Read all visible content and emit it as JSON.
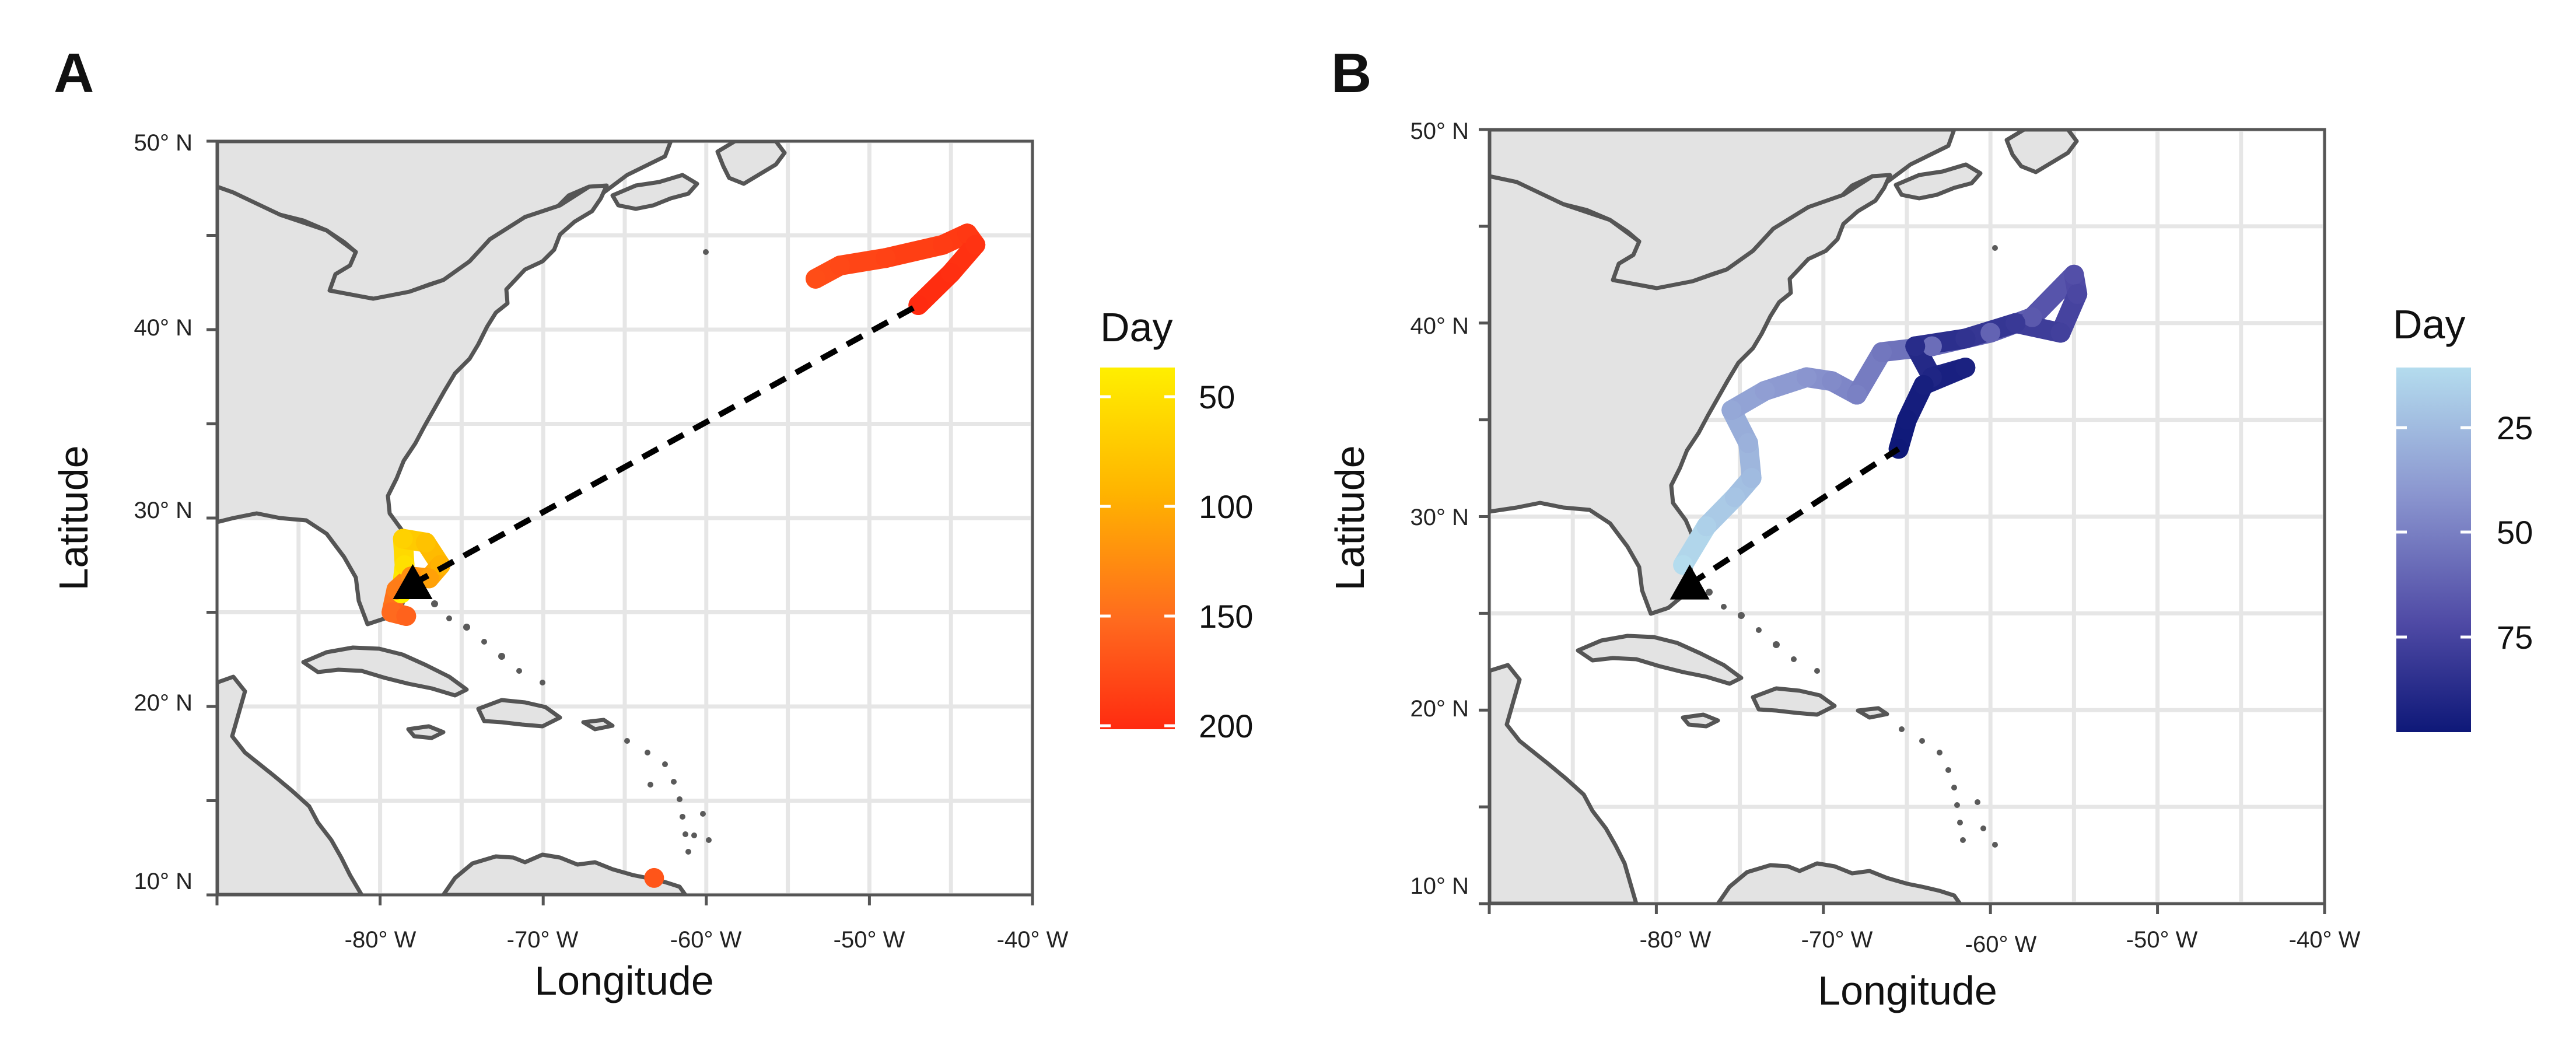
{
  "figure": {
    "panels": [
      {
        "letter": "A",
        "x_ticks": [
          "-80° W",
          "-70° W",
          "-60° W",
          "-50° W",
          "-40° W"
        ],
        "y_ticks": [
          "10° N",
          "20° N",
          "30° N",
          "40° N",
          "50° N"
        ],
        "xlabel": "Longitude",
        "ylabel": "Latitude",
        "legend": {
          "title": "Day",
          "ticks": [
            "50",
            "100",
            "150",
            "200"
          ],
          "colors": [
            "#ffef00",
            "#ffb300",
            "#ff6a1e",
            "#ff2b10"
          ]
        }
      },
      {
        "letter": "B",
        "x_ticks": [
          "-80° W",
          "-70° W",
          "-60° W",
          "-50° W",
          "-40° W"
        ],
        "y_ticks": [
          "10° N",
          "20° N",
          "30° N",
          "40° N",
          "50° N"
        ],
        "xlabel": "Longitude",
        "ylabel": "Latitude",
        "legend": {
          "title": "Day",
          "ticks": [
            "25",
            "50",
            "75"
          ],
          "colors": [
            "#b4dcee",
            "#8a95cf",
            "#4f4aa5",
            "#0e1878"
          ]
        }
      }
    ]
  },
  "chart_data": [
    {
      "type": "scatter",
      "title": "A",
      "xlabel": "Longitude",
      "ylabel": "Latitude",
      "xlim": [
        -90,
        -40
      ],
      "ylim": [
        10,
        50
      ],
      "color_variable": "Day",
      "color_range": [
        20,
        200
      ],
      "release_point": {
        "lon": -78,
        "lat": 26.5
      },
      "final_point": {
        "lon": -47,
        "lat": 41.3
      },
      "track": [
        {
          "lon": -78.7,
          "lat": 26.0,
          "day": 20
        },
        {
          "lon": -78.5,
          "lat": 27.5,
          "day": 35
        },
        {
          "lon": -78.6,
          "lat": 28.9,
          "day": 50
        },
        {
          "lon": -77.2,
          "lat": 28.7,
          "day": 65
        },
        {
          "lon": -76.3,
          "lat": 27.5,
          "day": 80
        },
        {
          "lon": -77.0,
          "lat": 26.8,
          "day": 95
        },
        {
          "lon": -78.1,
          "lat": 26.9,
          "day": 110
        },
        {
          "lon": -79.0,
          "lat": 26.2,
          "day": 125
        },
        {
          "lon": -79.3,
          "lat": 25.0,
          "day": 140
        },
        {
          "lon": -78.4,
          "lat": 24.8,
          "day": 148
        },
        {
          "lon": -63.2,
          "lat": 10.9,
          "day": 160
        },
        {
          "lon": -53.3,
          "lat": 42.7,
          "day": 168
        },
        {
          "lon": -51.8,
          "lat": 43.4,
          "day": 172
        },
        {
          "lon": -49.0,
          "lat": 43.8,
          "day": 178
        },
        {
          "lon": -45.5,
          "lat": 44.5,
          "day": 184
        },
        {
          "lon": -44.0,
          "lat": 45.1,
          "day": 188
        },
        {
          "lon": -43.5,
          "lat": 44.5,
          "day": 192
        },
        {
          "lon": -45.0,
          "lat": 43.0,
          "day": 196
        },
        {
          "lon": -47.0,
          "lat": 41.3,
          "day": 200
        }
      ]
    },
    {
      "type": "scatter",
      "title": "B",
      "xlabel": "Longitude",
      "ylabel": "Latitude",
      "xlim": [
        -90,
        -40
      ],
      "ylim": [
        10,
        50
      ],
      "color_variable": "Day",
      "color_range": [
        10,
        100
      ],
      "release_point": {
        "lon": -78,
        "lat": 26.5
      },
      "final_point": {
        "lon": -65.5,
        "lat": 33.5
      },
      "track": [
        {
          "lon": -78.4,
          "lat": 27.5,
          "day": 10
        },
        {
          "lon": -77.0,
          "lat": 29.5,
          "day": 15
        },
        {
          "lon": -75.3,
          "lat": 31.0,
          "day": 20
        },
        {
          "lon": -74.3,
          "lat": 32.0,
          "day": 24
        },
        {
          "lon": -74.5,
          "lat": 33.8,
          "day": 28
        },
        {
          "lon": -75.5,
          "lat": 35.5,
          "day": 32
        },
        {
          "lon": -73.5,
          "lat": 36.5,
          "day": 36
        },
        {
          "lon": -71.0,
          "lat": 37.2,
          "day": 40
        },
        {
          "lon": -69.5,
          "lat": 37.0,
          "day": 44
        },
        {
          "lon": -68.0,
          "lat": 36.3,
          "day": 48
        },
        {
          "lon": -66.5,
          "lat": 38.5,
          "day": 52
        },
        {
          "lon": -63.5,
          "lat": 38.8,
          "day": 56
        },
        {
          "lon": -60.0,
          "lat": 39.5,
          "day": 60
        },
        {
          "lon": -57.5,
          "lat": 40.3,
          "day": 64
        },
        {
          "lon": -55.0,
          "lat": 42.5,
          "day": 68
        },
        {
          "lon": -54.8,
          "lat": 41.5,
          "day": 72
        },
        {
          "lon": -55.8,
          "lat": 39.5,
          "day": 76
        },
        {
          "lon": -58.5,
          "lat": 40.0,
          "day": 80
        },
        {
          "lon": -61.5,
          "lat": 39.2,
          "day": 84
        },
        {
          "lon": -64.5,
          "lat": 38.8,
          "day": 88
        },
        {
          "lon": -63.5,
          "lat": 37.2,
          "day": 92
        },
        {
          "lon": -61.5,
          "lat": 37.7,
          "day": 94
        },
        {
          "lon": -64.0,
          "lat": 36.8,
          "day": 96
        },
        {
          "lon": -65.0,
          "lat": 35.0,
          "day": 98
        },
        {
          "lon": -65.5,
          "lat": 33.5,
          "day": 100
        }
      ]
    }
  ]
}
